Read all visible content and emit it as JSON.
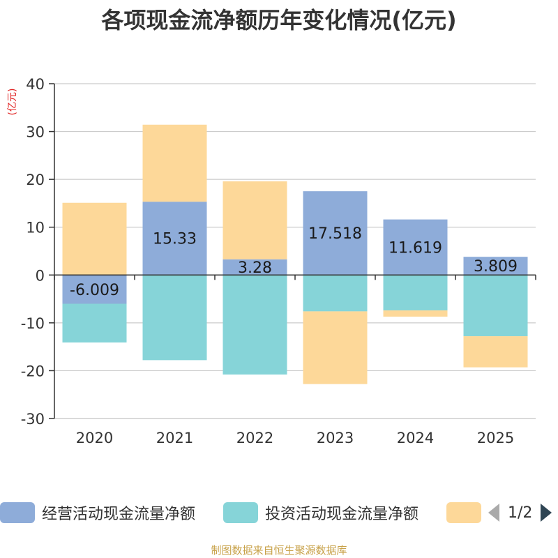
{
  "chart_data": {
    "type": "bar",
    "stacked": true,
    "title": "各项现金流净额历年变化情况(亿元)",
    "ylabel": "(亿元)",
    "xlabel": "",
    "ylim": [
      -30,
      40
    ],
    "yticks": [
      -30,
      -20,
      -10,
      0,
      10,
      20,
      30,
      40
    ],
    "categories": [
      "2020",
      "2021",
      "2022",
      "2023",
      "2024",
      "2025"
    ],
    "series": [
      {
        "name": "经营活动现金流量净额",
        "color": "#8eacd9",
        "values": [
          -6.009,
          15.33,
          3.28,
          17.518,
          11.619,
          3.809
        ],
        "labels": [
          "-6.009",
          "15.33",
          "3.28",
          "17.518",
          "11.619",
          "3.809"
        ]
      },
      {
        "name": "投资活动现金流量净额",
        "color": "#86d4d8",
        "values": [
          -8.1,
          -17.8,
          -20.8,
          -7.6,
          -7.4,
          -12.8
        ]
      },
      {
        "name": "",
        "color": "#fdd899",
        "values": [
          15.1,
          16.1,
          16.3,
          -15.2,
          -1.3,
          -6.5
        ]
      }
    ],
    "legend_position": "bottom"
  },
  "legend": {
    "items": [
      {
        "label": "经营活动现金流量净额",
        "color": "#8eacd9"
      },
      {
        "label": "投资活动现金流量净额",
        "color": "#86d4d8"
      },
      {
        "label": "",
        "color": "#fdd899"
      }
    ],
    "pager": "1/2"
  },
  "source": "制图数据来自恒生聚源数据库"
}
